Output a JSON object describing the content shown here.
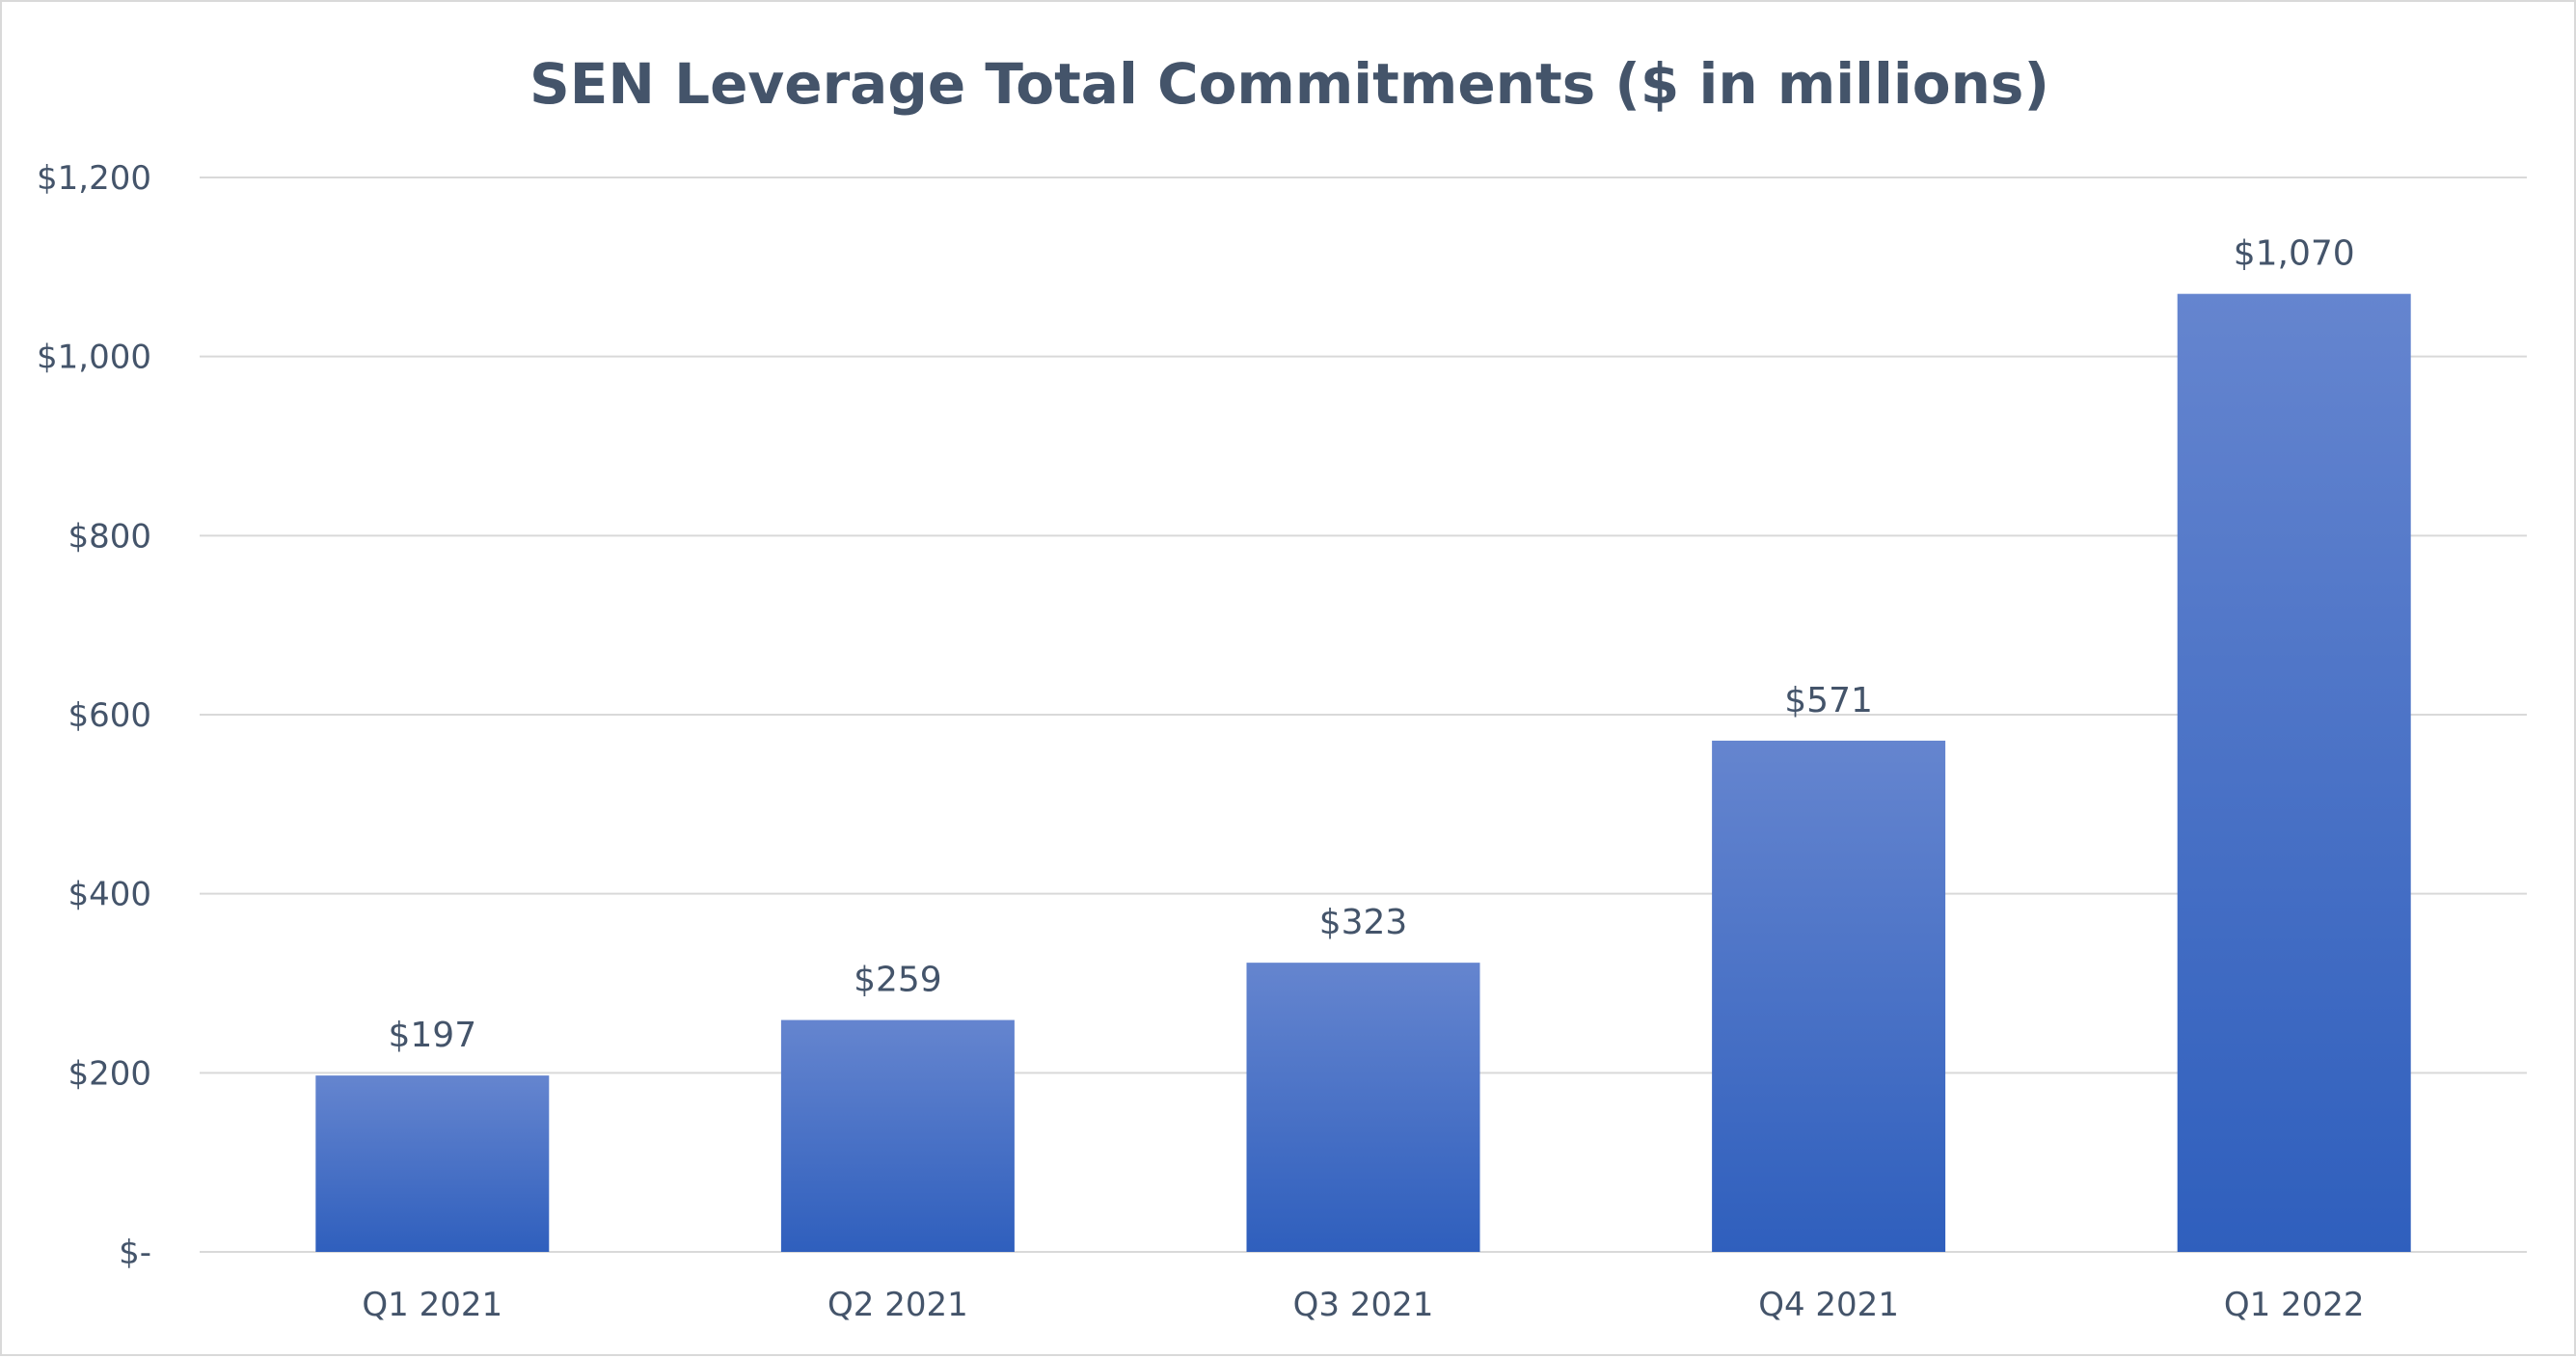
{
  "chart_data": {
    "type": "bar",
    "title": "SEN Leverage Total Commitments ($ in millions)",
    "xlabel": "",
    "ylabel": "",
    "categories": [
      "Q1 2021",
      "Q2 2021",
      "Q3 2021",
      "Q4 2021",
      "Q1 2022"
    ],
    "values": [
      197,
      259,
      323,
      571,
      1070
    ],
    "data_labels": [
      "$197",
      "$259",
      "$323",
      "$571",
      "$1,070"
    ],
    "ylim": [
      0,
      1200
    ],
    "yticks": [
      0,
      200,
      400,
      600,
      800,
      1000,
      1200
    ],
    "ytick_labels": [
      "$-",
      "$200",
      "$400",
      "$600",
      "$800",
      "$1,000",
      "$1,200"
    ],
    "grid": true,
    "legend": "none",
    "colors": {
      "bar_top": "#6585cf",
      "bar_bottom": "#2f5fbd",
      "text": "#44546a",
      "grid": "#d9d9d9"
    }
  }
}
